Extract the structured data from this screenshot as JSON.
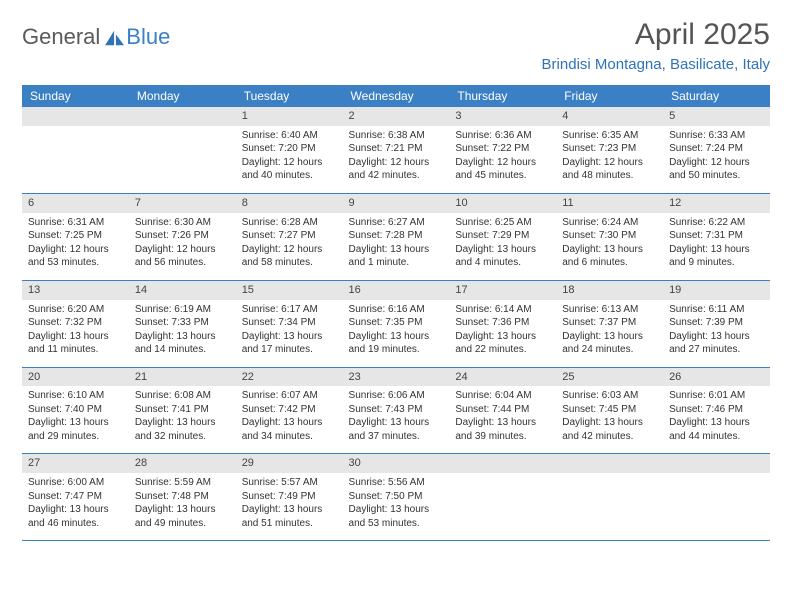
{
  "logo": {
    "text1": "General",
    "text2": "Blue"
  },
  "title": "April 2025",
  "location": "Brindisi Montagna, Basilicate, Italy",
  "colors": {
    "header_bg": "#3b7fc4",
    "header_text": "#ffffff",
    "daynum_bg": "#e6e6e6",
    "border": "#3b7fc4",
    "body_text": "#333333",
    "title_text": "#555555",
    "location_text": "#2f72b8",
    "logo_gray": "#5a5a5a",
    "logo_blue": "#3b7fc4",
    "background": "#ffffff"
  },
  "typography": {
    "font_family": "Arial",
    "title_fontsize": 30,
    "location_fontsize": 15,
    "weekday_fontsize": 12,
    "daynum_fontsize": 11,
    "cell_fontsize": 10
  },
  "weekdays": [
    "Sunday",
    "Monday",
    "Tuesday",
    "Wednesday",
    "Thursday",
    "Friday",
    "Saturday"
  ],
  "weeks": [
    [
      null,
      null,
      {
        "n": "1",
        "sunrise": "Sunrise: 6:40 AM",
        "sunset": "Sunset: 7:20 PM",
        "daylight": "Daylight: 12 hours and 40 minutes."
      },
      {
        "n": "2",
        "sunrise": "Sunrise: 6:38 AM",
        "sunset": "Sunset: 7:21 PM",
        "daylight": "Daylight: 12 hours and 42 minutes."
      },
      {
        "n": "3",
        "sunrise": "Sunrise: 6:36 AM",
        "sunset": "Sunset: 7:22 PM",
        "daylight": "Daylight: 12 hours and 45 minutes."
      },
      {
        "n": "4",
        "sunrise": "Sunrise: 6:35 AM",
        "sunset": "Sunset: 7:23 PM",
        "daylight": "Daylight: 12 hours and 48 minutes."
      },
      {
        "n": "5",
        "sunrise": "Sunrise: 6:33 AM",
        "sunset": "Sunset: 7:24 PM",
        "daylight": "Daylight: 12 hours and 50 minutes."
      }
    ],
    [
      {
        "n": "6",
        "sunrise": "Sunrise: 6:31 AM",
        "sunset": "Sunset: 7:25 PM",
        "daylight": "Daylight: 12 hours and 53 minutes."
      },
      {
        "n": "7",
        "sunrise": "Sunrise: 6:30 AM",
        "sunset": "Sunset: 7:26 PM",
        "daylight": "Daylight: 12 hours and 56 minutes."
      },
      {
        "n": "8",
        "sunrise": "Sunrise: 6:28 AM",
        "sunset": "Sunset: 7:27 PM",
        "daylight": "Daylight: 12 hours and 58 minutes."
      },
      {
        "n": "9",
        "sunrise": "Sunrise: 6:27 AM",
        "sunset": "Sunset: 7:28 PM",
        "daylight": "Daylight: 13 hours and 1 minute."
      },
      {
        "n": "10",
        "sunrise": "Sunrise: 6:25 AM",
        "sunset": "Sunset: 7:29 PM",
        "daylight": "Daylight: 13 hours and 4 minutes."
      },
      {
        "n": "11",
        "sunrise": "Sunrise: 6:24 AM",
        "sunset": "Sunset: 7:30 PM",
        "daylight": "Daylight: 13 hours and 6 minutes."
      },
      {
        "n": "12",
        "sunrise": "Sunrise: 6:22 AM",
        "sunset": "Sunset: 7:31 PM",
        "daylight": "Daylight: 13 hours and 9 minutes."
      }
    ],
    [
      {
        "n": "13",
        "sunrise": "Sunrise: 6:20 AM",
        "sunset": "Sunset: 7:32 PM",
        "daylight": "Daylight: 13 hours and 11 minutes."
      },
      {
        "n": "14",
        "sunrise": "Sunrise: 6:19 AM",
        "sunset": "Sunset: 7:33 PM",
        "daylight": "Daylight: 13 hours and 14 minutes."
      },
      {
        "n": "15",
        "sunrise": "Sunrise: 6:17 AM",
        "sunset": "Sunset: 7:34 PM",
        "daylight": "Daylight: 13 hours and 17 minutes."
      },
      {
        "n": "16",
        "sunrise": "Sunrise: 6:16 AM",
        "sunset": "Sunset: 7:35 PM",
        "daylight": "Daylight: 13 hours and 19 minutes."
      },
      {
        "n": "17",
        "sunrise": "Sunrise: 6:14 AM",
        "sunset": "Sunset: 7:36 PM",
        "daylight": "Daylight: 13 hours and 22 minutes."
      },
      {
        "n": "18",
        "sunrise": "Sunrise: 6:13 AM",
        "sunset": "Sunset: 7:37 PM",
        "daylight": "Daylight: 13 hours and 24 minutes."
      },
      {
        "n": "19",
        "sunrise": "Sunrise: 6:11 AM",
        "sunset": "Sunset: 7:39 PM",
        "daylight": "Daylight: 13 hours and 27 minutes."
      }
    ],
    [
      {
        "n": "20",
        "sunrise": "Sunrise: 6:10 AM",
        "sunset": "Sunset: 7:40 PM",
        "daylight": "Daylight: 13 hours and 29 minutes."
      },
      {
        "n": "21",
        "sunrise": "Sunrise: 6:08 AM",
        "sunset": "Sunset: 7:41 PM",
        "daylight": "Daylight: 13 hours and 32 minutes."
      },
      {
        "n": "22",
        "sunrise": "Sunrise: 6:07 AM",
        "sunset": "Sunset: 7:42 PM",
        "daylight": "Daylight: 13 hours and 34 minutes."
      },
      {
        "n": "23",
        "sunrise": "Sunrise: 6:06 AM",
        "sunset": "Sunset: 7:43 PM",
        "daylight": "Daylight: 13 hours and 37 minutes."
      },
      {
        "n": "24",
        "sunrise": "Sunrise: 6:04 AM",
        "sunset": "Sunset: 7:44 PM",
        "daylight": "Daylight: 13 hours and 39 minutes."
      },
      {
        "n": "25",
        "sunrise": "Sunrise: 6:03 AM",
        "sunset": "Sunset: 7:45 PM",
        "daylight": "Daylight: 13 hours and 42 minutes."
      },
      {
        "n": "26",
        "sunrise": "Sunrise: 6:01 AM",
        "sunset": "Sunset: 7:46 PM",
        "daylight": "Daylight: 13 hours and 44 minutes."
      }
    ],
    [
      {
        "n": "27",
        "sunrise": "Sunrise: 6:00 AM",
        "sunset": "Sunset: 7:47 PM",
        "daylight": "Daylight: 13 hours and 46 minutes."
      },
      {
        "n": "28",
        "sunrise": "Sunrise: 5:59 AM",
        "sunset": "Sunset: 7:48 PM",
        "daylight": "Daylight: 13 hours and 49 minutes."
      },
      {
        "n": "29",
        "sunrise": "Sunrise: 5:57 AM",
        "sunset": "Sunset: 7:49 PM",
        "daylight": "Daylight: 13 hours and 51 minutes."
      },
      {
        "n": "30",
        "sunrise": "Sunrise: 5:56 AM",
        "sunset": "Sunset: 7:50 PM",
        "daylight": "Daylight: 13 hours and 53 minutes."
      },
      null,
      null,
      null
    ]
  ]
}
